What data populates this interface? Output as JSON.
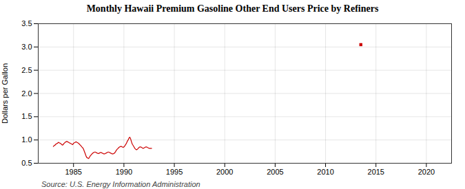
{
  "chart_data": {
    "type": "line",
    "title": "Monthly Hawaii Premium Gasoline Other End Users Price by Refiners",
    "ylabel": "Dollars per Gallon",
    "source": "Source: U.S. Energy Information Administration",
    "color": "#cc0000",
    "grid": true,
    "xlim": [
      1981.5,
      2022.5
    ],
    "ylim": [
      0.5,
      3.5
    ],
    "xticks": [
      1985,
      1990,
      1995,
      2000,
      2005,
      2010,
      2015,
      2020
    ],
    "yticks": [
      0.5,
      {
        "value": 1.0,
        "label": "1.0"
      },
      1.5,
      {
        "value": 2.0,
        "label": "2.0"
      },
      2.5,
      {
        "value": 3.0,
        "label": "3.0"
      },
      3.5
    ],
    "x": [
      1983.0,
      1983.08,
      1983.17,
      1983.25,
      1983.33,
      1983.42,
      1983.5,
      1983.58,
      1983.67,
      1983.75,
      1983.83,
      1983.92,
      1984.0,
      1984.08,
      1984.17,
      1984.25,
      1984.33,
      1984.42,
      1984.5,
      1984.58,
      1984.67,
      1984.75,
      1984.83,
      1984.92,
      1985.0,
      1985.08,
      1985.17,
      1985.25,
      1985.33,
      1985.42,
      1985.5,
      1985.58,
      1985.67,
      1985.75,
      1985.83,
      1985.92,
      1986.0,
      1986.08,
      1986.17,
      1986.25,
      1986.33,
      1986.42,
      1986.5,
      1986.58,
      1986.67,
      1986.75,
      1986.83,
      1986.92,
      1987.0,
      1987.08,
      1987.17,
      1987.25,
      1987.33,
      1987.42,
      1987.5,
      1987.58,
      1987.67,
      1987.75,
      1987.83,
      1987.92,
      1988.0,
      1988.08,
      1988.17,
      1988.25,
      1988.33,
      1988.42,
      1988.5,
      1988.58,
      1988.67,
      1988.75,
      1988.83,
      1988.92,
      1989.0,
      1989.08,
      1989.17,
      1989.25,
      1989.33,
      1989.42,
      1989.5,
      1989.58,
      1989.67,
      1989.75,
      1989.83,
      1989.92,
      1990.0,
      1990.08,
      1990.17,
      1990.25,
      1990.33,
      1990.42,
      1990.5,
      1990.58,
      1990.67,
      1990.75,
      1990.83,
      1990.92,
      1991.0,
      1991.08,
      1991.17,
      1991.25,
      1991.33,
      1991.42,
      1991.5,
      1991.58,
      1991.67,
      1991.75,
      1991.83,
      1991.92,
      1992.0,
      1992.08,
      1992.17,
      1992.25,
      1992.33,
      1992.42,
      1992.5,
      1992.58,
      1992.67,
      1992.75,
      null,
      2013.5
    ],
    "values": [
      0.86,
      0.88,
      0.89,
      0.91,
      0.92,
      0.93,
      0.95,
      0.94,
      0.93,
      0.92,
      0.9,
      0.89,
      0.91,
      0.93,
      0.95,
      0.96,
      0.97,
      0.96,
      0.95,
      0.94,
      0.93,
      0.92,
      0.91,
      0.9,
      0.93,
      0.94,
      0.95,
      0.96,
      0.95,
      0.94,
      0.93,
      0.91,
      0.89,
      0.87,
      0.85,
      0.83,
      0.8,
      0.75,
      0.7,
      0.65,
      0.62,
      0.61,
      0.6,
      0.63,
      0.66,
      0.68,
      0.7,
      0.72,
      0.73,
      0.74,
      0.74,
      0.73,
      0.72,
      0.71,
      0.71,
      0.72,
      0.73,
      0.73,
      0.72,
      0.71,
      0.7,
      0.7,
      0.71,
      0.72,
      0.73,
      0.74,
      0.74,
      0.73,
      0.72,
      0.71,
      0.7,
      0.7,
      0.71,
      0.72,
      0.75,
      0.78,
      0.8,
      0.82,
      0.84,
      0.85,
      0.86,
      0.86,
      0.85,
      0.84,
      0.85,
      0.87,
      0.9,
      0.93,
      0.97,
      1.0,
      1.04,
      1.06,
      1.02,
      0.96,
      0.91,
      0.88,
      0.85,
      0.82,
      0.8,
      0.79,
      0.8,
      0.82,
      0.84,
      0.85,
      0.85,
      0.84,
      0.83,
      0.82,
      0.83,
      0.84,
      0.85,
      0.85,
      0.84,
      0.83,
      0.82,
      0.82,
      0.82,
      0.82,
      null,
      3.05
    ]
  }
}
